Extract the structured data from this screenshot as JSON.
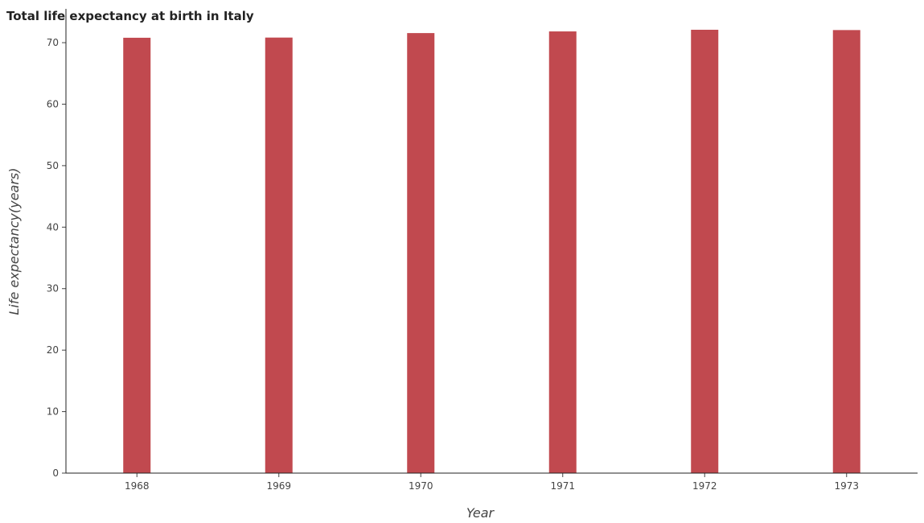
{
  "chart_data": {
    "type": "bar",
    "title": "Total life expectancy at birth in Italy",
    "xlabel": "Year",
    "ylabel": "Life expectancy(years)",
    "categories": [
      "1968",
      "1969",
      "1970",
      "1971",
      "1972",
      "1973"
    ],
    "values": [
      70.8,
      70.83,
      71.56,
      71.83,
      72.1,
      72.05
    ],
    "ylim": [
      0,
      75.5
    ],
    "yticks": [
      0,
      10,
      20,
      30,
      40,
      50,
      60,
      70
    ],
    "grid": false,
    "legend": "none",
    "bar_color": "#c1494f"
  }
}
